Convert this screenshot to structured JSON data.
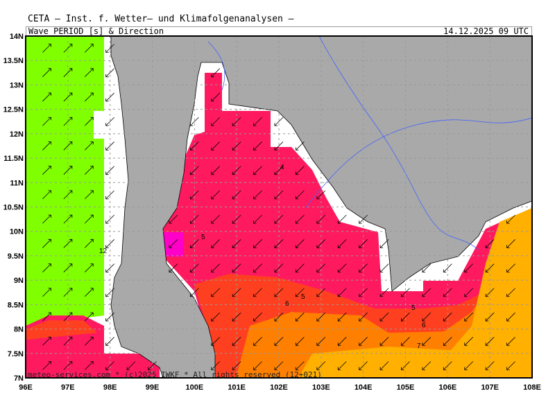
{
  "header": {
    "organization": "CETA – Inst. f. Wetter– und Klimafolgenanalysen –",
    "title": "Wave_PERIOD_[s]_&_Direction",
    "valid_time": "14.12.2025 09 UTC"
  },
  "footer": "meteo-services.com * (c)2025 IWKF * All rights reserved (12+021)",
  "axes": {
    "lon_labels": [
      "96E",
      "97E",
      "98E",
      "99E",
      "100E",
      "101E",
      "102E",
      "103E",
      "104E",
      "105E",
      "106E",
      "107E",
      "108E"
    ],
    "lat_labels": [
      "7N",
      "7.5N",
      "8N",
      "8.5N",
      "9N",
      "9.5N",
      "10N",
      "10.5N",
      "11N",
      "11.5N",
      "12N",
      "12.5N",
      "13N",
      "13.5N",
      "14N"
    ]
  },
  "contour_labels": [
    "12",
    "4",
    "5",
    "5",
    "6",
    "5",
    "6",
    "7"
  ],
  "colors": {
    "land": "#a9a9a9",
    "period_12": "#80ff00",
    "period_4": "#ff1a60",
    "period_magenta": "#ff00c8",
    "period_5": "#ff4020",
    "period_6": "#ff8000",
    "period_7": "#ffb000",
    "rivers": "#4060ff"
  }
}
